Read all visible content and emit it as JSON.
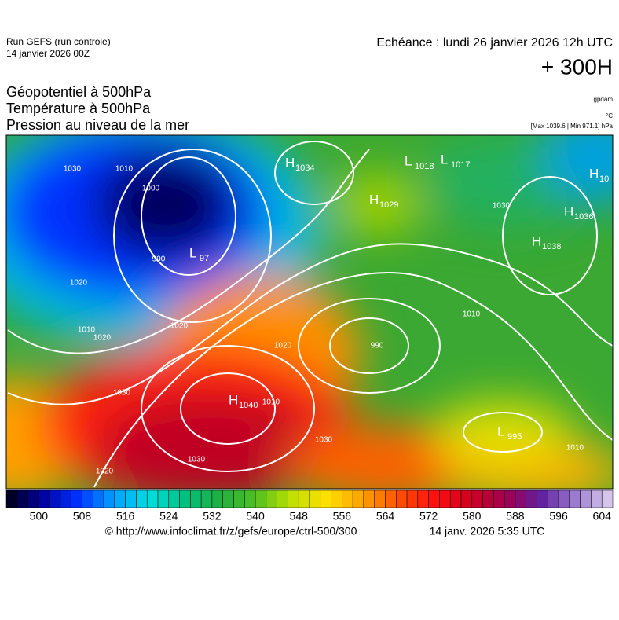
{
  "header": {
    "run": "Run GEFS (run controle)",
    "run_date": "14 janvier 2026 00Z",
    "valid": "Echéance : lundi 26 janvier 2026 12h UTC",
    "lead": "+ 300H",
    "fields": [
      "Géopotentiel à 500hPa",
      "Température à 500hPa",
      "Pression au niveau de la mer"
    ],
    "units": [
      "gpdam",
      "°C",
      "[Max 1039.6 | Min 971.1] hPa"
    ]
  },
  "map": {
    "centers": [
      [
        "H",
        "1034"
      ],
      [
        "L",
        "1018"
      ],
      [
        "L",
        "1017"
      ],
      [
        "H",
        "1029"
      ],
      [
        "H",
        "1036"
      ],
      [
        "H",
        "1038"
      ],
      [
        "H",
        "10"
      ],
      [
        "H",
        "1040"
      ],
      [
        "L",
        "97"
      ],
      [
        "L",
        "995"
      ]
    ],
    "isobar_labels": [
      "1030",
      "1010",
      "1000",
      "990",
      "1020",
      "1010",
      "1020",
      "1030",
      "1020",
      "990",
      "1030",
      "1010",
      "1020",
      "1030",
      "1010",
      "1020",
      "1030",
      "1010"
    ]
  },
  "colorbar": {
    "range": [
      494,
      606
    ],
    "step": 2,
    "ticks": [
      500,
      508,
      516,
      524,
      532,
      540,
      548,
      556,
      564,
      572,
      580,
      588,
      596,
      604
    ],
    "colors": [
      "#000010",
      "#0000a0",
      "#0030ff",
      "#00a0ff",
      "#00e0e0",
      "#00c080",
      "#20b040",
      "#50c020",
      "#c0e000",
      "#ffe000",
      "#ffa000",
      "#ff5000",
      "#ff1010",
      "#d00020",
      "#a00050",
      "#6020a0",
      "#a080d0",
      "#e0d0f0"
    ]
  },
  "footer": {
    "source": "© http://www.infoclimat.fr/z/gefs/europe/ctrl-500/300",
    "issued": "14 janv. 2026  5:35 UTC"
  }
}
